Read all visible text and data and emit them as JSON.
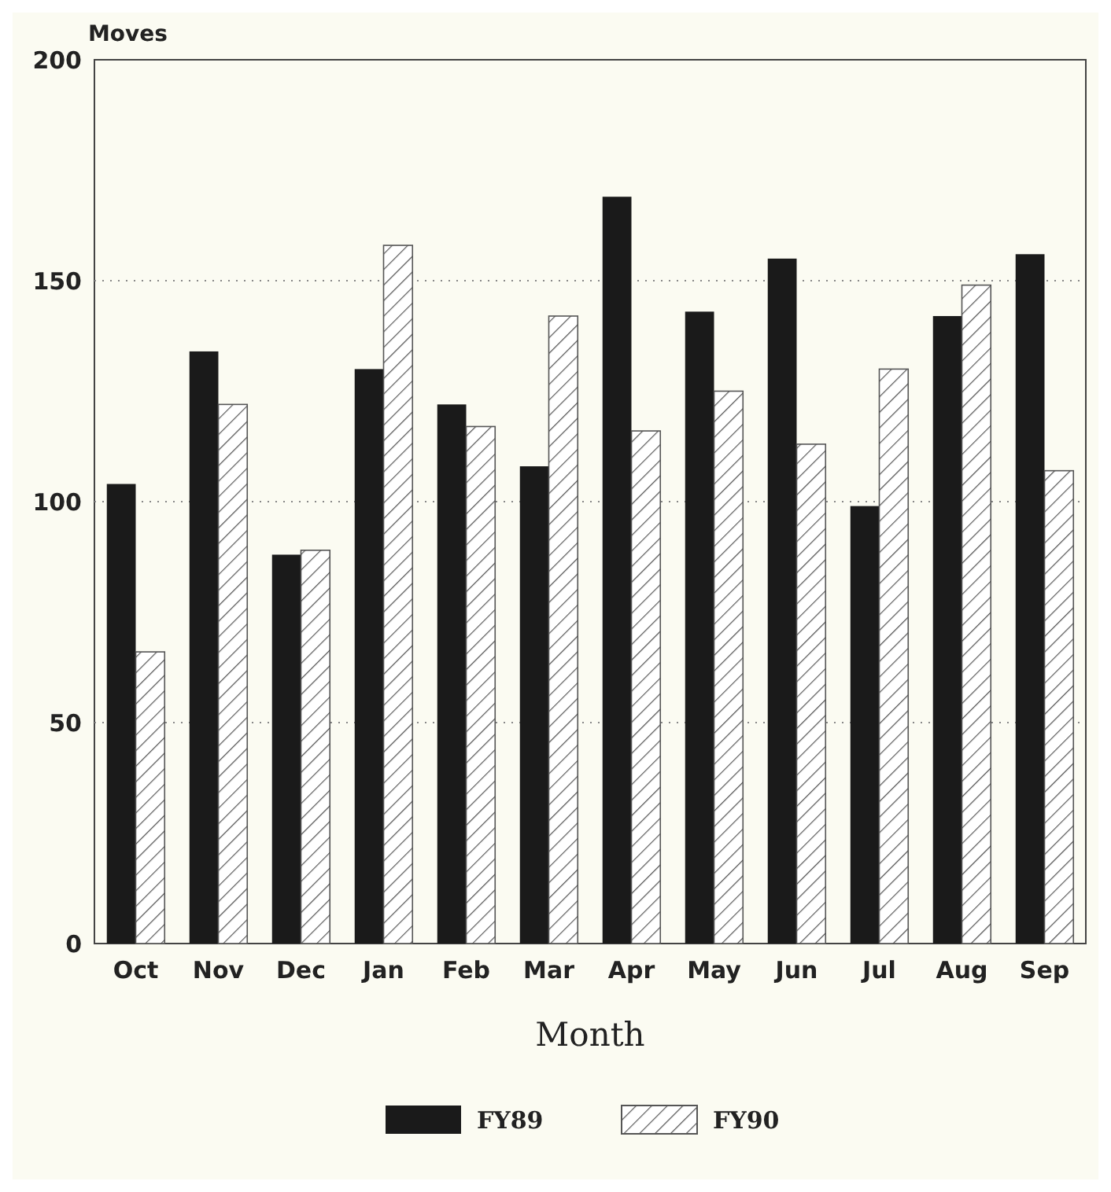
{
  "chart_data": {
    "type": "bar",
    "ylabel": "Moves",
    "xlabel": "Month",
    "categories": [
      "Oct",
      "Nov",
      "Dec",
      "Jan",
      "Feb",
      "Mar",
      "Apr",
      "May",
      "Jun",
      "Jul",
      "Aug",
      "Sep"
    ],
    "series": [
      {
        "name": "FY89",
        "color": "#1a1a1a",
        "values": [
          104,
          134,
          88,
          130,
          122,
          108,
          169,
          143,
          155,
          99,
          142,
          156
        ]
      },
      {
        "name": "FY90",
        "color": "#555555",
        "values": [
          66,
          122,
          89,
          158,
          117,
          142,
          116,
          125,
          113,
          130,
          149,
          107
        ]
      }
    ],
    "ylim": [
      0,
      200
    ],
    "yticks": [
      0,
      50,
      100,
      150,
      200
    ],
    "grid": "y",
    "legend": "bottom"
  }
}
